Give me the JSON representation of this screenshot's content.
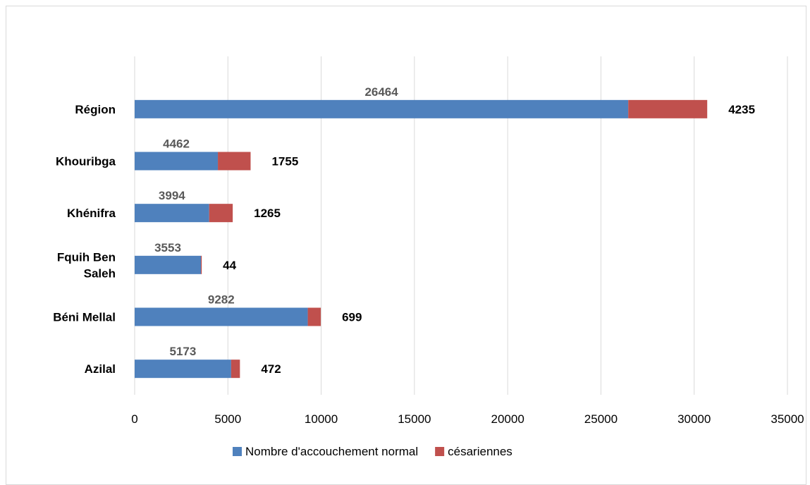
{
  "chart_data": {
    "type": "bar",
    "orientation": "horizontal",
    "stacked": true,
    "categories": [
      [
        "Azilal"
      ],
      [
        "Béni Mellal"
      ],
      [
        "Fquih Ben",
        "Saleh"
      ],
      [
        "Khénifra"
      ],
      [
        "Khouribga"
      ],
      [
        "Région"
      ]
    ],
    "series": [
      {
        "name": "Nombre d'accouchement normal",
        "color": "#4f81bd",
        "values": [
          5173,
          9282,
          3553,
          3994,
          4462,
          26464
        ]
      },
      {
        "name": "césariennes",
        "color": "#c0504d",
        "values": [
          472,
          699,
          44,
          1265,
          1755,
          4235
        ]
      }
    ],
    "xlim": [
      0,
      35000
    ],
    "x_ticks": [
      0,
      5000,
      10000,
      15000,
      20000,
      25000,
      30000,
      35000
    ],
    "grid": "vertical",
    "legend": "bottom"
  }
}
